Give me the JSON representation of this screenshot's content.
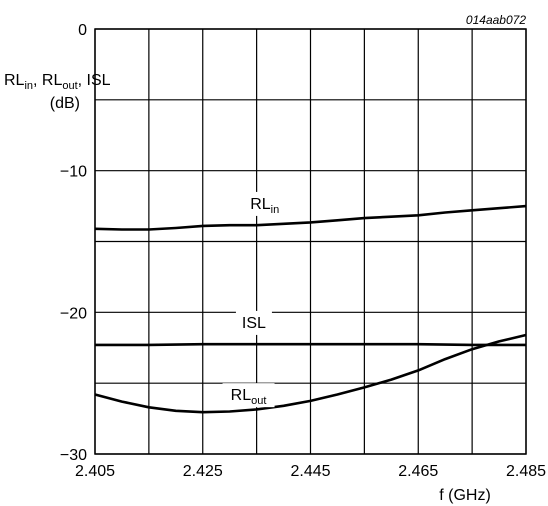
{
  "chart_data": {
    "type": "line",
    "figure_code": "014aab072",
    "xlabel": "f (GHz)",
    "ylabel": {
      "parts": [
        {
          "text": "RL",
          "sub": "in"
        },
        {
          "text": ", RL",
          "sub": "out"
        },
        {
          "text": ", ISL",
          "sub": ""
        }
      ],
      "unit": "(dB)"
    },
    "xlim": [
      2.405,
      2.485
    ],
    "ylim": [
      -30,
      0
    ],
    "x_ticks": [
      {
        "value": 2.405,
        "label": "2.405"
      },
      {
        "value": 2.425,
        "label": "2.425"
      },
      {
        "value": 2.445,
        "label": "2.445"
      },
      {
        "value": 2.465,
        "label": "2.465"
      },
      {
        "value": 2.485,
        "label": "2.485"
      }
    ],
    "y_ticks": [
      {
        "value": 0,
        "label": "0"
      },
      {
        "value": -10,
        "label": "−10"
      },
      {
        "value": -20,
        "label": "−20"
      },
      {
        "value": -30,
        "label": "−30"
      }
    ],
    "x_grid": [
      2.405,
      2.415,
      2.425,
      2.435,
      2.445,
      2.455,
      2.465,
      2.475,
      2.485
    ],
    "y_grid": [
      0,
      -5,
      -10,
      -15,
      -20,
      -25,
      -30
    ],
    "grid": true,
    "legend": "inline labels",
    "series": [
      {
        "name": "RL",
        "sub": "in",
        "label_at": {
          "x": 2.4365,
          "y": -12.7
        },
        "x": [
          2.405,
          2.41,
          2.415,
          2.42,
          2.425,
          2.43,
          2.435,
          2.44,
          2.445,
          2.45,
          2.455,
          2.46,
          2.465,
          2.47,
          2.475,
          2.48,
          2.485
        ],
        "y": [
          -14.1,
          -14.15,
          -14.15,
          -14.05,
          -13.9,
          -13.85,
          -13.85,
          -13.75,
          -13.65,
          -13.5,
          -13.35,
          -13.25,
          -13.15,
          -12.95,
          -12.8,
          -12.65,
          -12.5
        ]
      },
      {
        "name": "ISL",
        "sub": "",
        "label_at": {
          "x": 2.4345,
          "y": -21.1
        },
        "x": [
          2.405,
          2.415,
          2.425,
          2.435,
          2.445,
          2.455,
          2.465,
          2.475,
          2.485
        ],
        "y": [
          -22.3,
          -22.3,
          -22.25,
          -22.25,
          -22.25,
          -22.25,
          -22.25,
          -22.3,
          -22.3
        ]
      },
      {
        "name": "RL",
        "sub": "out",
        "label_at": {
          "x": 2.4335,
          "y": -26.2
        },
        "x": [
          2.405,
          2.41,
          2.415,
          2.42,
          2.425,
          2.43,
          2.435,
          2.44,
          2.445,
          2.45,
          2.455,
          2.46,
          2.465,
          2.47,
          2.475,
          2.48,
          2.485
        ],
        "y": [
          -25.8,
          -26.3,
          -26.7,
          -26.95,
          -27.05,
          -27.0,
          -26.85,
          -26.6,
          -26.25,
          -25.8,
          -25.3,
          -24.75,
          -24.1,
          -23.3,
          -22.6,
          -22.05,
          -21.6
        ]
      }
    ]
  }
}
